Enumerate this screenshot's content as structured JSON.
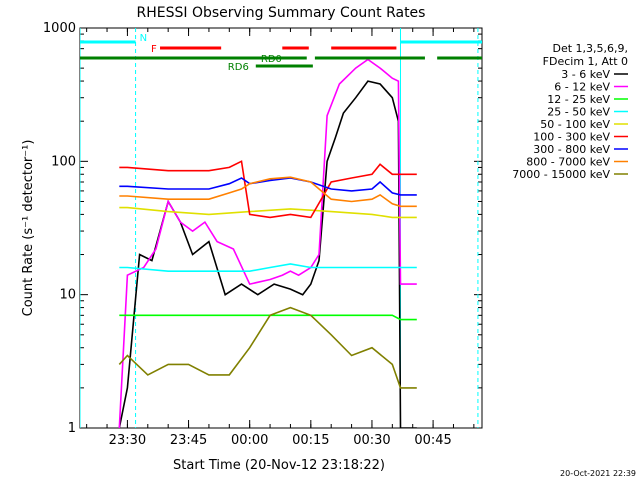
{
  "chart_data": {
    "type": "line",
    "title": "RHESSI Observing Summary Count Rates",
    "xlabel": "Start Time (20-Nov-12 23:18:22)",
    "ylabel": "Count Rate (s⁻¹ detector⁻¹)",
    "y_scale": "log",
    "ylim": [
      1,
      1000
    ],
    "xlim": [
      "23:18:22",
      "00:57:00"
    ],
    "x_ticks": [
      "23:30",
      "23:45",
      "00:00",
      "00:15",
      "00:30",
      "00:45"
    ],
    "y_ticks": [
      "1",
      "10",
      "100",
      "1000"
    ],
    "footer_date": "20-Oct-2021 22:39",
    "legend_header": [
      "Det 1,3,5,6,9,",
      "FDecim 1, Att 0"
    ],
    "legend_entries": [
      {
        "label": "3 - 6 keV",
        "color": "#000000"
      },
      {
        "label": "6 - 12 keV",
        "color": "#ff00ff"
      },
      {
        "label": "12 - 25 keV",
        "color": "#00ff00"
      },
      {
        "label": "25 - 50 keV",
        "color": "#00ffff"
      },
      {
        "label": "50 - 100 keV",
        "color": "#e0e000"
      },
      {
        "label": "100 - 300 keV",
        "color": "#ff0000"
      },
      {
        "label": "300 - 800 keV",
        "color": "#0000ff"
      },
      {
        "label": "800 - 7000 keV",
        "color": "#ff8000"
      },
      {
        "label": "7000 - 15000 keV",
        "color": "#808000"
      }
    ],
    "flag_bars": [
      {
        "label": "N",
        "color": "#00ffff",
        "segments": [
          [
            "23:18:22",
            "23:32:00"
          ],
          [
            "00:37:00",
            "00:57:00"
          ]
        ]
      },
      {
        "label": "F",
        "color": "#ff0000",
        "segments": [
          [
            "23:38:00",
            "23:53:00"
          ],
          [
            "00:08:00",
            "00:14:30"
          ],
          [
            "00:20:00",
            "00:36:00"
          ]
        ]
      },
      {
        "label": "RD0",
        "color": "#008000",
        "segments": [
          [
            "23:18:22",
            "00:14:00"
          ],
          [
            "00:16:00",
            "00:43:00"
          ],
          [
            "00:46:00",
            "00:57:00"
          ]
        ]
      },
      {
        "label": "RD6",
        "color": "#008000",
        "segments": [
          [
            "00:01:30",
            "00:15:30"
          ]
        ]
      }
    ],
    "vertical_markers": [
      {
        "time": "23:18:22",
        "color": "#00ffff",
        "style": "solid"
      },
      {
        "time": "23:32:00",
        "color": "#00ffff",
        "style": "dashed"
      },
      {
        "time": "00:37:00",
        "color": "#00ffff",
        "style": "solid"
      },
      {
        "time": "00:56:00",
        "color": "#00ffff",
        "style": "dashed"
      }
    ],
    "series": [
      {
        "name": "3 - 6 keV",
        "color": "#000000",
        "x": [
          "23:28:00",
          "23:30:00",
          "23:33:00",
          "23:36:00",
          "23:40:00",
          "23:43:00",
          "23:46:00",
          "23:50:00",
          "23:54:00",
          "23:58:00",
          "00:02:00",
          "00:06:00",
          "00:10:00",
          "00:13:00",
          "00:15:00",
          "00:17:00",
          "00:19:00",
          "00:21:00",
          "00:23:00",
          "00:26:00",
          "00:29:00",
          "00:32:00",
          "00:35:00",
          "00:36:30",
          "00:37:00",
          "00:41:00"
        ],
        "y": [
          1,
          2,
          20,
          18,
          50,
          35,
          20,
          25,
          10,
          12,
          10,
          12,
          11,
          10,
          12,
          18,
          100,
          150,
          230,
          300,
          400,
          380,
          300,
          200,
          1,
          1
        ]
      },
      {
        "name": "6 - 12 keV",
        "color": "#ff00ff",
        "x": [
          "23:28:00",
          "23:30:00",
          "23:34:00",
          "23:37:00",
          "23:40:00",
          "23:43:00",
          "23:46:00",
          "23:49:00",
          "23:52:00",
          "23:56:00",
          "00:00:00",
          "00:05:00",
          "00:08:00",
          "00:10:00",
          "00:12:00",
          "00:15:00",
          "00:17:00",
          "00:19:00",
          "00:22:00",
          "00:26:00",
          "00:29:00",
          "00:32:00",
          "00:35:00",
          "00:36:30",
          "00:37:00",
          "00:41:00"
        ],
        "y": [
          1,
          14,
          16,
          22,
          50,
          35,
          30,
          35,
          25,
          22,
          12,
          13,
          14,
          15,
          14,
          16,
          20,
          220,
          380,
          500,
          580,
          500,
          420,
          400,
          12,
          12
        ]
      },
      {
        "name": "12 - 25 keV",
        "color": "#00ff00",
        "x": [
          "23:28:00",
          "23:30:00",
          "23:35:00",
          "23:40:00",
          "23:45:00",
          "23:50:00",
          "23:55:00",
          "00:00:00",
          "00:05:00",
          "00:10:00",
          "00:15:00",
          "00:20:00",
          "00:25:00",
          "00:30:00",
          "00:35:00",
          "00:37:00",
          "00:41:00"
        ],
        "y": [
          7,
          7,
          7,
          7,
          7,
          7,
          7,
          7,
          7,
          7,
          7,
          7,
          7,
          7,
          7,
          6.5,
          6.5
        ]
      },
      {
        "name": "25 - 50 keV",
        "color": "#00ffff",
        "x": [
          "23:28:00",
          "23:30:00",
          "23:40:00",
          "23:50:00",
          "00:00:00",
          "00:05:00",
          "00:10:00",
          "00:15:00",
          "00:20:00",
          "00:30:00",
          "00:35:00",
          "00:37:00",
          "00:41:00"
        ],
        "y": [
          16,
          16,
          15,
          15,
          15,
          16,
          17,
          16,
          16,
          16,
          16,
          16,
          16
        ]
      },
      {
        "name": "50 - 100 keV",
        "color": "#e0e000",
        "x": [
          "23:28:00",
          "23:30:00",
          "23:40:00",
          "23:50:00",
          "00:00:00",
          "00:10:00",
          "00:15:00",
          "00:20:00",
          "00:30:00",
          "00:35:00",
          "00:37:00",
          "00:41:00"
        ],
        "y": [
          45,
          45,
          42,
          40,
          42,
          44,
          43,
          42,
          40,
          38,
          38,
          38
        ]
      },
      {
        "name": "100 - 300 keV",
        "color": "#ff0000",
        "x": [
          "23:28:00",
          "23:30:00",
          "23:40:00",
          "23:50:00",
          "23:55:00",
          "23:58:00",
          "00:00:00",
          "00:05:00",
          "00:10:00",
          "00:15:00",
          "00:20:00",
          "00:25:00",
          "00:30:00",
          "00:32:00",
          "00:35:00",
          "00:37:00",
          "00:41:00"
        ],
        "y": [
          90,
          90,
          85,
          85,
          90,
          100,
          40,
          38,
          40,
          38,
          70,
          75,
          80,
          95,
          80,
          80,
          80
        ]
      },
      {
        "name": "300 - 800 keV",
        "color": "#0000ff",
        "x": [
          "23:28:00",
          "23:30:00",
          "23:40:00",
          "23:50:00",
          "23:55:00",
          "23:58:00",
          "00:00:00",
          "00:05:00",
          "00:10:00",
          "00:15:00",
          "00:20:00",
          "00:25:00",
          "00:30:00",
          "00:32:00",
          "00:35:00",
          "00:37:00",
          "00:41:00"
        ],
        "y": [
          65,
          65,
          62,
          62,
          68,
          75,
          68,
          72,
          75,
          70,
          62,
          60,
          62,
          70,
          58,
          56,
          56
        ]
      },
      {
        "name": "800 - 7000 keV",
        "color": "#ff8000",
        "x": [
          "23:28:00",
          "23:30:00",
          "23:40:00",
          "23:50:00",
          "23:55:00",
          "23:58:00",
          "00:00:00",
          "00:05:00",
          "00:10:00",
          "00:15:00",
          "00:20:00",
          "00:25:00",
          "00:30:00",
          "00:32:00",
          "00:35:00",
          "00:37:00",
          "00:41:00"
        ],
        "y": [
          55,
          55,
          52,
          52,
          58,
          62,
          68,
          74,
          76,
          70,
          52,
          50,
          52,
          56,
          48,
          46,
          46
        ]
      },
      {
        "name": "7000 - 15000 keV",
        "color": "#808000",
        "x": [
          "23:28:00",
          "23:30:00",
          "23:35:00",
          "23:40:00",
          "23:45:00",
          "23:50:00",
          "23:55:00",
          "00:00:00",
          "00:05:00",
          "00:10:00",
          "00:15:00",
          "00:20:00",
          "00:25:00",
          "00:30:00",
          "00:35:00",
          "00:37:00",
          "00:41:00"
        ],
        "y": [
          3,
          3.5,
          2.5,
          3,
          3,
          2.5,
          2.5,
          4,
          7,
          8,
          7,
          5,
          3.5,
          4,
          3,
          2,
          2
        ]
      }
    ]
  }
}
